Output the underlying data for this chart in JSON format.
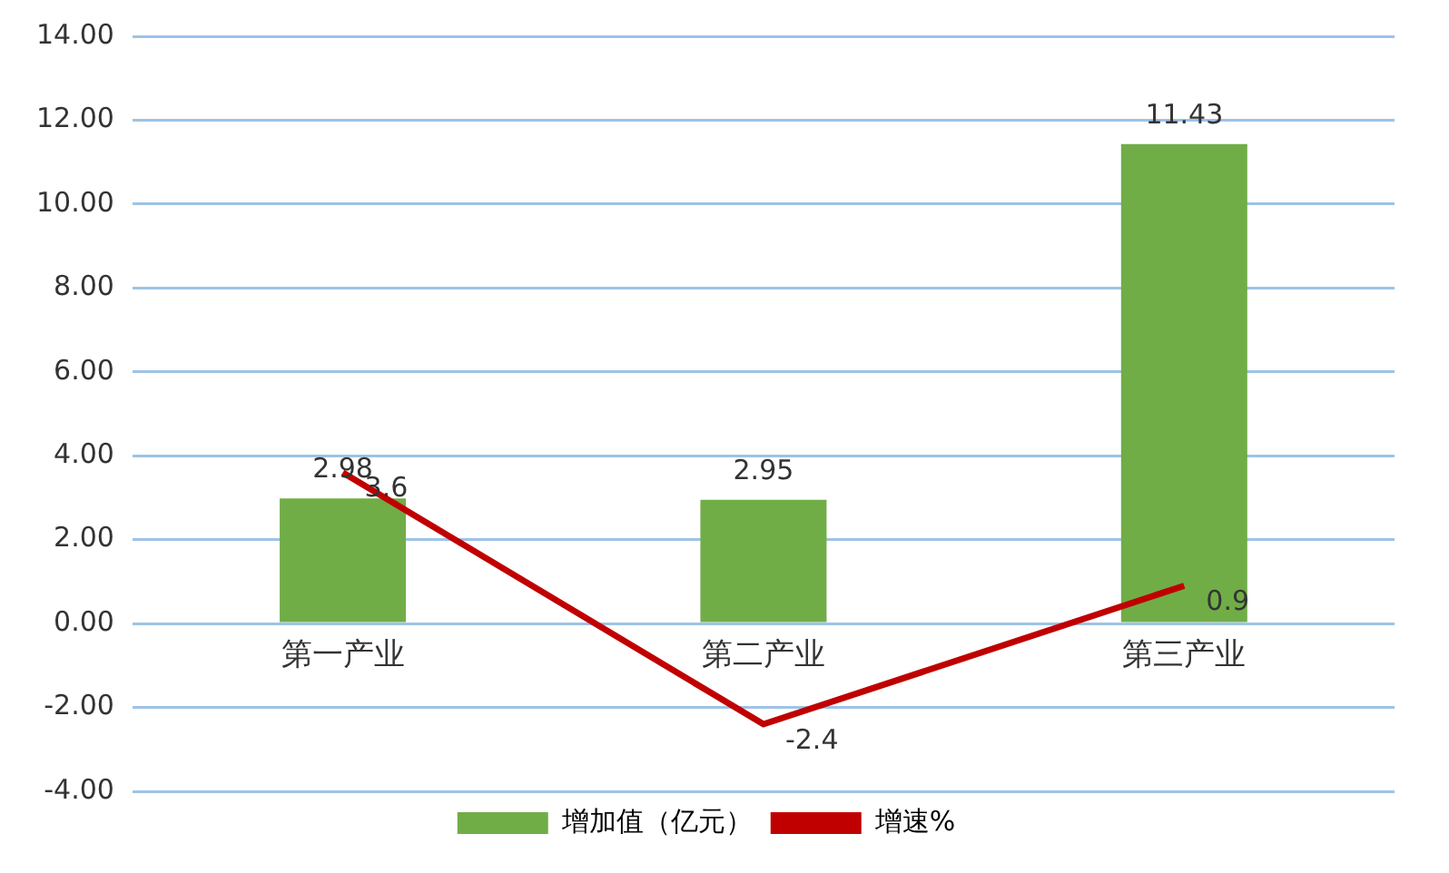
{
  "chart_data": {
    "type": "bar",
    "categories": [
      "第一产业",
      "第二产业",
      "第三产业"
    ],
    "series": [
      {
        "name": "增加值（亿元）",
        "color": "#70ad47",
        "values": [
          2.98,
          2.95,
          11.43
        ]
      },
      {
        "name": "增速%",
        "type": "line",
        "color": "#c00000",
        "values": [
          3.6,
          -2.4,
          0.9
        ]
      }
    ],
    "ylim": [
      -4,
      14
    ],
    "yticks": [
      {
        "value": -4,
        "label": "-4.00"
      },
      {
        "value": -2,
        "label": "-2.00"
      },
      {
        "value": 0,
        "label": "0.00"
      },
      {
        "value": 2,
        "label": "2.00"
      },
      {
        "value": 4,
        "label": "4.00"
      },
      {
        "value": 6,
        "label": "6.00"
      },
      {
        "value": 8,
        "label": "8.00"
      },
      {
        "value": 10,
        "label": "10.00"
      },
      {
        "value": 12,
        "label": "12.00"
      },
      {
        "value": 14,
        "label": "14.00"
      }
    ],
    "grid": "y",
    "legend": "bottom",
    "data_labels": true,
    "marker": "none"
  }
}
